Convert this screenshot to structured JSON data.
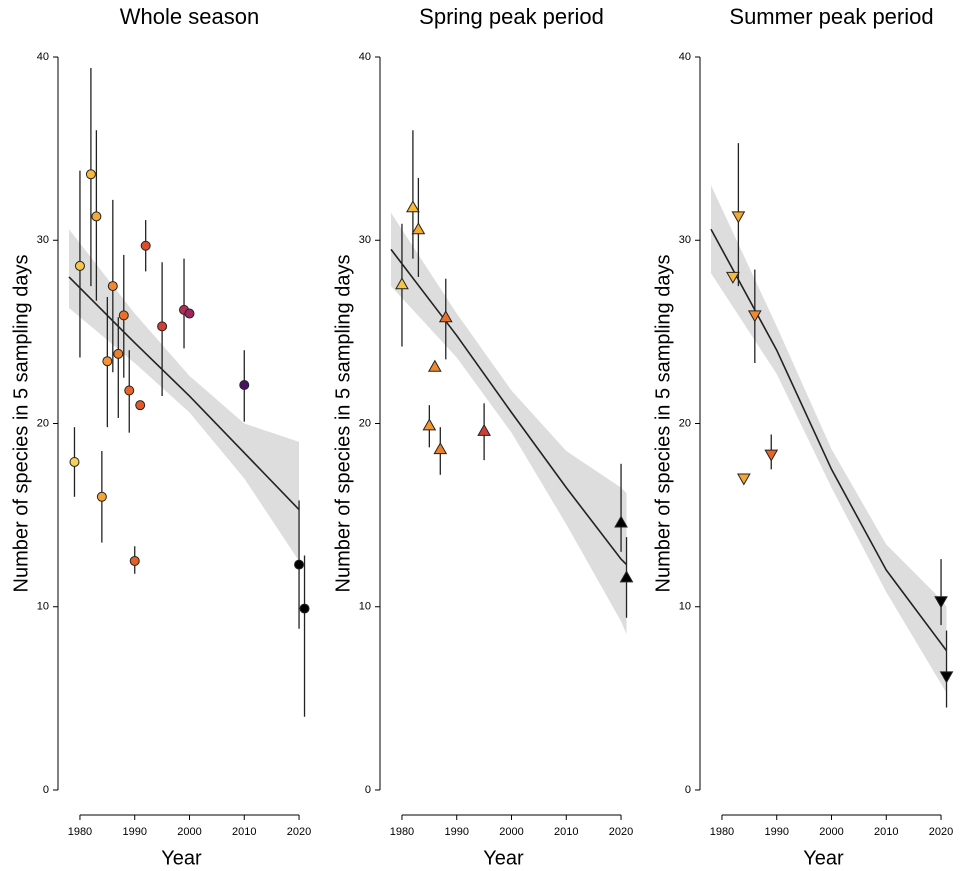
{
  "chart_data": [
    {
      "type": "scatter",
      "title": "Whole season",
      "xlabel": "Year",
      "ylabel": "Number of species in 5 sampling days",
      "marker": "circle",
      "x": [
        1979,
        1980,
        1982,
        1983,
        1984,
        1985,
        1986,
        1987,
        1988,
        1989,
        1990,
        1991,
        1992,
        1995,
        1999,
        2000,
        2010,
        2020,
        2021
      ],
      "values": [
        17.9,
        28.6,
        33.6,
        31.3,
        16.0,
        23.4,
        27.5,
        23.8,
        25.9,
        21.8,
        12.5,
        21.0,
        29.7,
        25.3,
        26.2,
        26.0,
        22.1,
        12.3,
        9.9
      ],
      "low": [
        16.0,
        23.6,
        27.5,
        26.7,
        13.5,
        19.8,
        22.8,
        20.3,
        22.5,
        19.5,
        11.8,
        null,
        28.3,
        21.5,
        24.1,
        null,
        20.1,
        8.8,
        4.0
      ],
      "high": [
        19.8,
        33.8,
        39.4,
        36.0,
        18.5,
        26.9,
        32.2,
        25.8,
        29.2,
        24.0,
        13.3,
        null,
        31.1,
        28.8,
        29.0,
        null,
        24.0,
        15.8,
        12.8
      ],
      "colors": [
        "#f5d05a",
        "#f7c44a",
        "#f6b93a",
        "#f3a936",
        "#f5a535",
        "#f49333",
        "#f0882f",
        "#ec7f2c",
        "#ea6f29",
        "#e86527",
        "#e66025",
        "#e25a28",
        "#dc4d2c",
        "#d03e35",
        "#b52d55",
        "#a1245f",
        "#4a1266",
        "#000000",
        "#000000"
      ],
      "fit": {
        "x": [
          1978,
          1990,
          2000,
          2010,
          2020
        ],
        "y": [
          28.0,
          24.4,
          21.5,
          18.4,
          15.3
        ],
        "low": [
          26.3,
          23.3,
          20.6,
          17.0,
          12.5
        ],
        "high": [
          30.6,
          26.0,
          22.6,
          20.0,
          19.0
        ],
        "color": "#222222"
      },
      "band_color": "#cfcfcf",
      "xlim": [
        1978,
        2022
      ],
      "ylim": [
        0,
        40
      ],
      "xticks": [
        1980,
        1990,
        2000,
        2010,
        2020
      ],
      "yticks": [
        0,
        10,
        20,
        30,
        40
      ]
    },
    {
      "type": "scatter",
      "title": "Spring peak period",
      "xlabel": "Year",
      "ylabel": "Number of species in 5 sampling days",
      "marker": "triangle-up",
      "x": [
        1980,
        1982,
        1983,
        1985,
        1986,
        1987,
        1988,
        1995,
        2020,
        2021
      ],
      "values": [
        27.6,
        31.8,
        30.6,
        19.9,
        23.1,
        18.6,
        25.8,
        19.6,
        14.6,
        11.6
      ],
      "low": [
        24.2,
        29.0,
        28.0,
        18.7,
        null,
        17.2,
        23.5,
        18.0,
        13.0,
        9.4
      ],
      "high": [
        30.9,
        36.0,
        33.4,
        21.0,
        null,
        19.8,
        27.9,
        21.1,
        17.8,
        13.8
      ],
      "colors": [
        "#f7c44a",
        "#f6b93a",
        "#f3a936",
        "#f49333",
        "#f0882f",
        "#ec7f2c",
        "#ea6f29",
        "#d03e35",
        "#000000",
        "#000000"
      ],
      "fit": {
        "x": [
          1978,
          1990,
          2000,
          2010,
          2020,
          2021
        ],
        "y": [
          29.5,
          24.8,
          20.6,
          16.5,
          12.6,
          12.3
        ],
        "low": [
          27.5,
          23.6,
          19.5,
          14.5,
          9.2,
          8.5
        ],
        "high": [
          31.5,
          26.0,
          21.8,
          18.5,
          16.5,
          16.2
        ],
        "color": "#222222"
      },
      "band_color": "#cfcfcf",
      "xlim": [
        1978,
        2022
      ],
      "ylim": [
        0,
        40
      ],
      "xticks": [
        1980,
        1990,
        2000,
        2010,
        2020
      ],
      "yticks": [
        0,
        10,
        20,
        30,
        40
      ]
    },
    {
      "type": "scatter",
      "title": "Summer peak period",
      "xlabel": "Year",
      "ylabel": "Number of species in 5 sampling days",
      "marker": "triangle-down",
      "x": [
        1982,
        1983,
        1984,
        1986,
        1989,
        2020,
        2021
      ],
      "values": [
        28.0,
        31.3,
        17.0,
        25.9,
        18.3,
        10.3,
        6.2
      ],
      "low": [
        null,
        27.5,
        null,
        23.3,
        17.5,
        9.0,
        4.5
      ],
      "high": [
        null,
        35.3,
        null,
        28.4,
        19.4,
        12.6,
        8.7
      ],
      "colors": [
        "#f6b93a",
        "#f3a936",
        "#f5a535",
        "#f0882f",
        "#e86527",
        "#000000",
        "#000000"
      ],
      "fit": {
        "x": [
          1978,
          1990,
          2000,
          2010,
          2020,
          2021
        ],
        "y": [
          30.6,
          24.0,
          17.5,
          12.0,
          8.0,
          7.6
        ],
        "low": [
          28.2,
          22.7,
          16.5,
          10.8,
          5.8,
          5.3
        ],
        "high": [
          33.0,
          25.3,
          18.6,
          13.4,
          10.4,
          10.0
        ],
        "color": "#222222"
      },
      "band_color": "#cfcfcf",
      "xlim": [
        1978,
        2022
      ],
      "ylim": [
        0,
        40
      ],
      "xticks": [
        1980,
        1990,
        2000,
        2010,
        2020
      ],
      "yticks": [
        0,
        10,
        20,
        30,
        40
      ]
    }
  ]
}
